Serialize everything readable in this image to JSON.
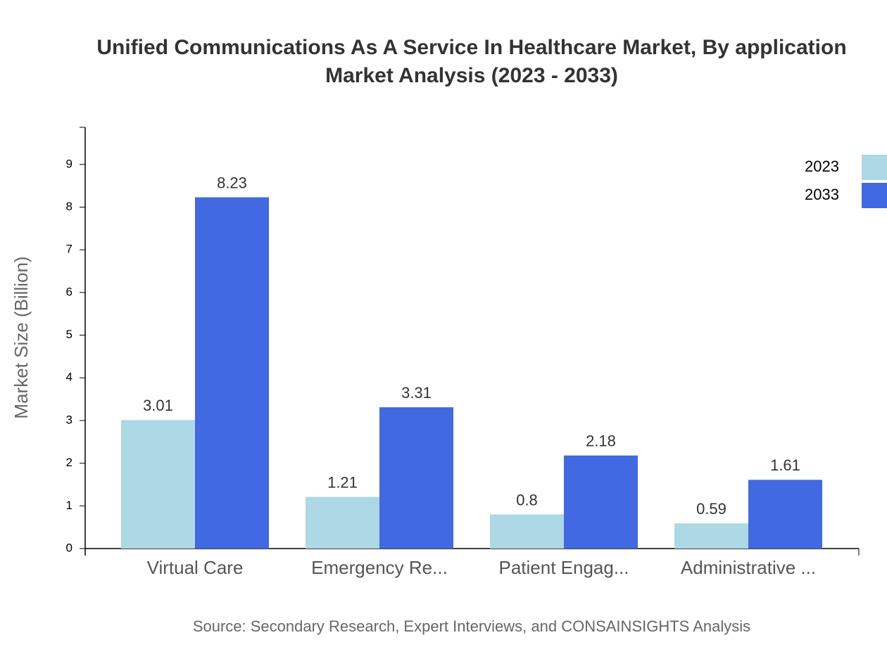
{
  "chart_data": {
    "type": "bar",
    "title": "Unified Communications As A Service In Healthcare Market, By application Market Analysis (2023 - 2033)",
    "y_label": "Market Size (Billion)",
    "source": "Source: Secondary Research, Expert Interviews, and CONSAINSIGHTS Analysis",
    "categories": [
      "Virtual Care",
      "Emergency Re...",
      "Patient Engag...",
      "Administrative ..."
    ],
    "series": [
      {
        "name": "2023",
        "color": "#add8e6",
        "values": [
          3.01,
          1.21,
          0.8,
          0.59
        ]
      },
      {
        "name": "2033",
        "color": "#4169e1",
        "values": [
          8.23,
          3.31,
          2.18,
          1.61
        ]
      }
    ],
    "ylim": [
      0,
      9.87
    ],
    "yticks": [
      0,
      1,
      2,
      3,
      4,
      5,
      6,
      7,
      8,
      9
    ],
    "legend": "top-right"
  }
}
